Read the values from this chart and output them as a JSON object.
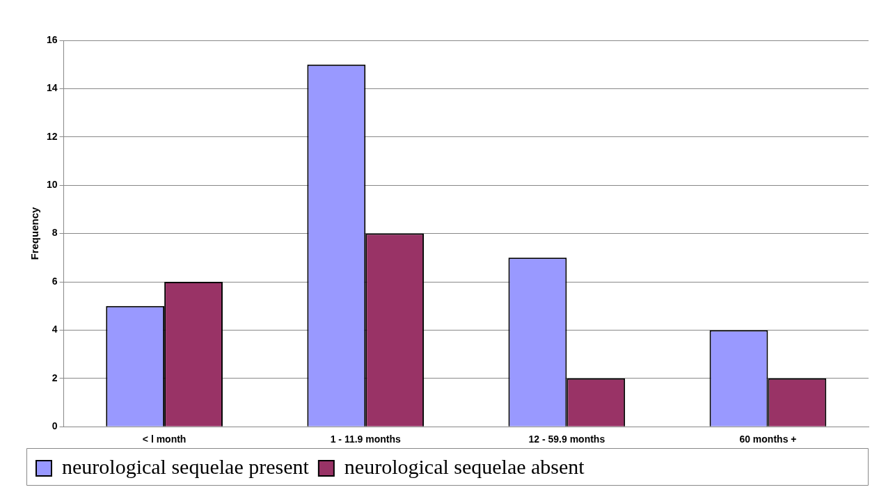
{
  "chart_data": {
    "type": "bar",
    "ylabel": "Frequency",
    "categories": [
      "< l month",
      "1 - 11.9 months",
      "12 - 59.9 months",
      "60 months +"
    ],
    "series": [
      {
        "name": "neurological sequelae present",
        "color": "#9999ff",
        "values": [
          5,
          15,
          7,
          4
        ]
      },
      {
        "name": "neurological sequelae absent",
        "color": "#993366",
        "values": [
          6,
          8,
          2,
          2
        ]
      }
    ],
    "ylim": [
      0,
      16
    ],
    "yticks": [
      0,
      2,
      4,
      6,
      8,
      10,
      12,
      14,
      16
    ],
    "grid": "y",
    "legend": "bottom left"
  }
}
